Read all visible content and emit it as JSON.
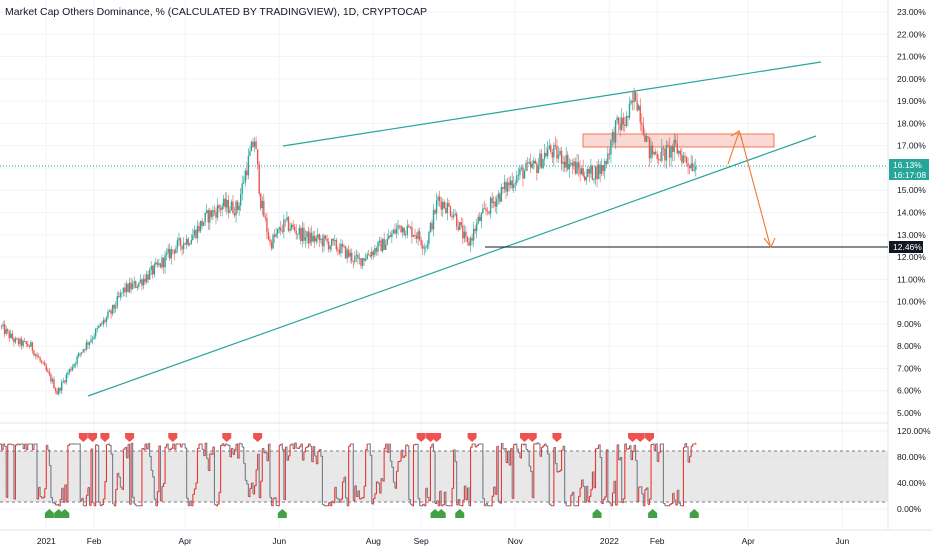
{
  "header": {
    "title": "Market Cap Others Dominance, % (CALCULATED BY TRADINGVIEW), 1D, CRYPTOCAP"
  },
  "price_axis": {
    "ticks": [
      "23.00%",
      "22.00%",
      "21.00%",
      "20.00%",
      "19.00%",
      "18.00%",
      "17.00%",
      "16.00%",
      "15.00%",
      "14.00%",
      "13.00%",
      "12.00%",
      "11.00%",
      "10.00%",
      "9.00%",
      "8.00%",
      "7.00%",
      "6.00%",
      "5.00%"
    ],
    "current_value": "16.13%",
    "countdown": "16:17:08",
    "level_label": "12.46%"
  },
  "oscillator_axis": {
    "ticks": [
      "120.00%",
      "80.00%",
      "40.00%",
      "0.00%"
    ]
  },
  "time_axis": {
    "ticks": [
      "2021",
      "Feb",
      "Apr",
      "Jun",
      "Aug",
      "Sep",
      "Nov",
      "2022",
      "Feb",
      "Apr",
      "Jun"
    ]
  },
  "colors": {
    "up": "#26a69a",
    "down": "#ef5350",
    "trendline": "#26a69a",
    "zone_fill": "#f8c8c0",
    "zone_border": "#f07850",
    "projection_arrow": "#f07830",
    "level_line": "#131722",
    "osc_band": "#e0e0e0",
    "osc_line_gray": "#787b86",
    "osc_line_red": "#e53935",
    "marker_red": "#ef5350",
    "marker_green": "#43a047",
    "current_badge": "#26a69a",
    "level_badge": "#131722"
  },
  "chart_data": [
    {
      "type": "candlestick",
      "title": "Market Cap Others Dominance, % (CALCULATED BY TRADINGVIEW), 1D, CRYPTOCAP",
      "unit": "%",
      "ylim": [
        5.0,
        23.0
      ],
      "x_range": [
        "2020-12-02",
        "2022-06-28"
      ],
      "last_value": 16.13,
      "close_path": [
        [
          "2020-12-02",
          8.9
        ],
        [
          "2020-12-12",
          8.2
        ],
        [
          "2020-12-22",
          8.0
        ],
        [
          "2020-12-30",
          7.1
        ],
        [
          "2021-01-05",
          6.4
        ],
        [
          "2021-01-08",
          5.9
        ],
        [
          "2021-01-15",
          6.8
        ],
        [
          "2021-01-25",
          7.9
        ],
        [
          "2021-02-05",
          8.9
        ],
        [
          "2021-02-12",
          9.5
        ],
        [
          "2021-02-20",
          10.5
        ],
        [
          "2021-03-01",
          10.8
        ],
        [
          "2021-03-15",
          11.6
        ],
        [
          "2021-03-25",
          12.4
        ],
        [
          "2021-04-05",
          12.9
        ],
        [
          "2021-04-15",
          13.8
        ],
        [
          "2021-04-25",
          14.3
        ],
        [
          "2021-05-05",
          14.2
        ],
        [
          "2021-05-10",
          15.8
        ],
        [
          "2021-05-16",
          17.3
        ],
        [
          "2021-05-20",
          14.5
        ],
        [
          "2021-05-26",
          12.6
        ],
        [
          "2021-06-05",
          13.5
        ],
        [
          "2021-06-18",
          12.9
        ],
        [
          "2021-06-30",
          12.7
        ],
        [
          "2021-07-10",
          12.4
        ],
        [
          "2021-07-22",
          11.8
        ],
        [
          "2021-08-01",
          12.3
        ],
        [
          "2021-08-08",
          12.6
        ],
        [
          "2021-08-18",
          13.4
        ],
        [
          "2021-08-28",
          13.1
        ],
        [
          "2021-09-04",
          12.5
        ],
        [
          "2021-09-12",
          14.6
        ],
        [
          "2021-09-22",
          14.0
        ],
        [
          "2021-10-01",
          12.5
        ],
        [
          "2021-10-08",
          13.6
        ],
        [
          "2021-10-18",
          14.5
        ],
        [
          "2021-10-28",
          15.3
        ],
        [
          "2021-11-05",
          15.8
        ],
        [
          "2021-11-15",
          16.1
        ],
        [
          "2021-11-22",
          16.8
        ],
        [
          "2021-12-01",
          16.5
        ],
        [
          "2021-12-10",
          16.0
        ],
        [
          "2021-12-18",
          15.7
        ],
        [
          "2021-12-28",
          16.0
        ],
        [
          "2022-01-05",
          17.8
        ],
        [
          "2022-01-12",
          18.1
        ],
        [
          "2022-01-18",
          19.3
        ],
        [
          "2022-01-22",
          18.2
        ],
        [
          "2022-01-27",
          16.7
        ],
        [
          "2022-02-05",
          16.6
        ],
        [
          "2022-02-13",
          16.9
        ],
        [
          "2022-02-20",
          16.3
        ],
        [
          "2022-02-26",
          16.13
        ]
      ]
    },
    {
      "type": "line",
      "name": "oscillator",
      "unit": "%",
      "ylim": [
        -18,
        132
      ],
      "band": [
        7,
        90
      ],
      "peak_markers": [
        "2021-01-25",
        "2021-01-31",
        "2021-02-08",
        "2021-02-24",
        "2021-03-24",
        "2021-04-28",
        "2021-05-18",
        "2021-09-01",
        "2021-09-07",
        "2021-09-11",
        "2021-10-04",
        "2021-11-07",
        "2021-11-12",
        "2021-11-28",
        "2022-01-16",
        "2022-01-21",
        "2022-01-27"
      ],
      "trough_markers": [
        "2021-01-03",
        "2021-01-09",
        "2021-01-13",
        "2021-06-03",
        "2021-09-10",
        "2021-09-14",
        "2021-09-26",
        "2021-12-24",
        "2022-01-29",
        "2022-02-25"
      ]
    }
  ]
}
